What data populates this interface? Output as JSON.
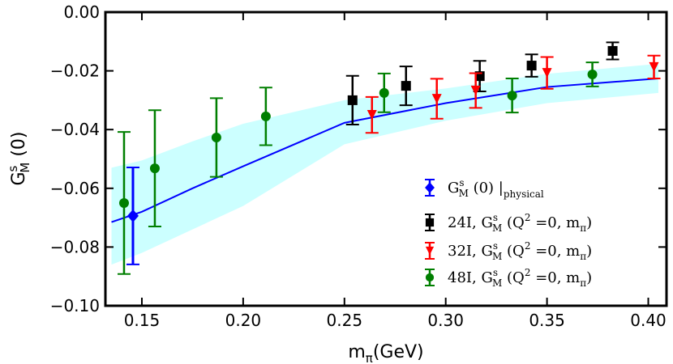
{
  "chart_data": {
    "type": "scatter",
    "xlabel": {
      "main": "m",
      "sub": "π",
      "rest": "(GeV)"
    },
    "ylabel": {
      "main": "G",
      "sup": "s",
      "sub": "M",
      "rest": " (0)"
    },
    "xlim": [
      0.132,
      0.409
    ],
    "ylim": [
      -0.1,
      0.0
    ],
    "xticks": [
      0.15,
      0.2,
      0.25,
      0.3,
      0.35,
      0.4
    ],
    "xtick_labels": [
      "0.15",
      "0.20",
      "0.25",
      "0.30",
      "0.35",
      "0.40"
    ],
    "yticks": [
      0.0,
      -0.02,
      -0.04,
      -0.06,
      -0.08,
      -0.1
    ],
    "ytick_labels": [
      "0.00",
      "−0.02",
      "−0.04",
      "−0.06",
      "−0.08",
      "−0.10"
    ],
    "grid": false,
    "legend_placement": "lower-right",
    "fit": {
      "color": "#0000ff",
      "band_color": "#ccffff",
      "x": [
        0.135,
        0.15,
        0.175,
        0.2,
        0.25,
        0.3,
        0.35,
        0.405
      ],
      "y": [
        -0.0715,
        -0.068,
        -0.06,
        -0.0525,
        -0.0377,
        -0.031,
        -0.0255,
        -0.0226
      ],
      "upper": [
        -0.053,
        -0.0505,
        -0.044,
        -0.038,
        -0.03,
        -0.026,
        -0.021,
        -0.0176
      ],
      "lower": [
        -0.086,
        -0.082,
        -0.074,
        -0.066,
        -0.045,
        -0.037,
        -0.031,
        -0.0275
      ]
    },
    "series": [
      {
        "legend": {
          "prefix": "",
          "main": "G",
          "sup": "s",
          "sub": "M",
          "rest": " (0) |",
          "sub2": "physical",
          "rest2": ""
        },
        "color": "#0000ff",
        "marker": "diamond",
        "x": [
          0.1456
        ],
        "y": [
          -0.0694
        ],
        "err": [
          0.0165
        ]
      },
      {
        "legend": {
          "prefix": "24I, ",
          "main": "G",
          "sup": "s",
          "sub": "M",
          "rest": " (Q",
          "sup2": "2",
          "rest2": " =0, m",
          "sub2": "π",
          "end": ")"
        },
        "color": "#000000",
        "marker": "square",
        "x": [
          0.254,
          0.2804,
          0.3168,
          0.3424,
          0.3824
        ],
        "y": [
          -0.03,
          -0.0251,
          -0.0218,
          -0.0182,
          -0.0132
        ],
        "err": [
          0.0083,
          0.0066,
          0.0052,
          0.0038,
          0.0029
        ]
      },
      {
        "legend": {
          "prefix": "32I, ",
          "main": "G",
          "sup": "s",
          "sub": "M",
          "rest": " (Q",
          "sup2": "2",
          "rest2": " =0, m",
          "sub2": "π",
          "end": ")"
        },
        "color": "#ff0000",
        "marker": "triangle-down",
        "x": [
          0.2636,
          0.2956,
          0.3148,
          0.35,
          0.4028
        ],
        "y": [
          -0.035,
          -0.0295,
          -0.0267,
          -0.0207,
          -0.0187
        ],
        "err": [
          0.0061,
          0.0068,
          0.0059,
          0.0054,
          0.0039
        ]
      },
      {
        "legend": {
          "prefix": "48I, ",
          "main": "G",
          "sup": "s",
          "sub": "M",
          "rest": " (Q",
          "sup2": "2",
          "rest2": " =0, m",
          "sub2": "π",
          "end": ")"
        },
        "color": "#007f00",
        "marker": "circle",
        "x": [
          0.1412,
          0.1564,
          0.1868,
          0.2112,
          0.2696,
          0.3328,
          0.3724
        ],
        "y": [
          -0.065,
          -0.0532,
          -0.0427,
          -0.0355,
          -0.0275,
          -0.0284,
          -0.0212
        ],
        "err": [
          0.0242,
          0.0198,
          0.0134,
          0.0098,
          0.0066,
          0.0058,
          0.0041
        ]
      }
    ]
  }
}
